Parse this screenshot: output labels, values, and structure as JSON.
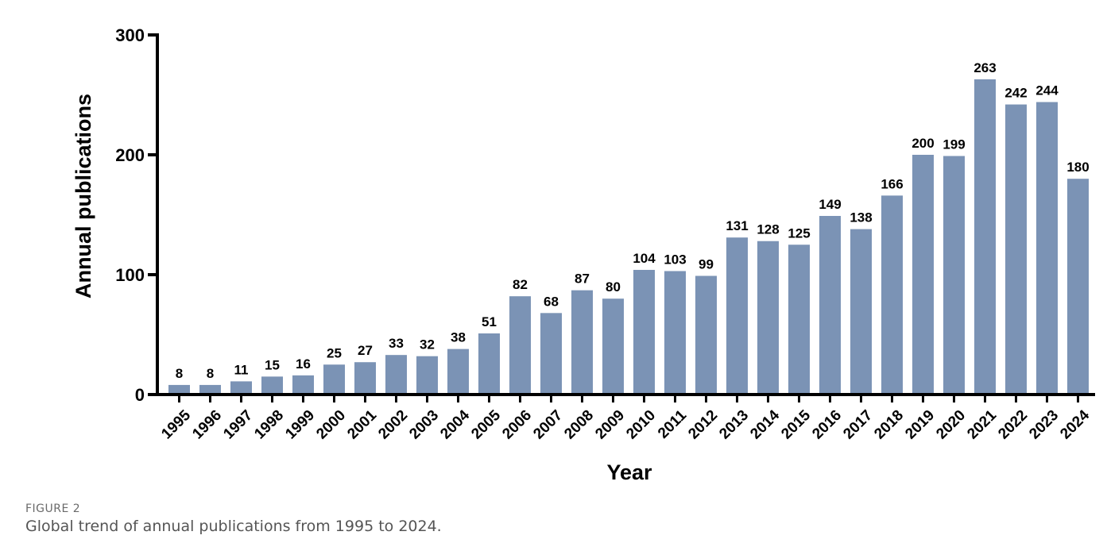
{
  "chart_data": {
    "type": "bar",
    "title": "",
    "xlabel": "Year",
    "ylabel": "Annual publications",
    "ylim": [
      0,
      300
    ],
    "yticks": [
      0,
      100,
      200,
      300
    ],
    "categories": [
      "1995",
      "1996",
      "1997",
      "1998",
      "1999",
      "2000",
      "2001",
      "2002",
      "2003",
      "2004",
      "2005",
      "2006",
      "2007",
      "2008",
      "2009",
      "2010",
      "2011",
      "2012",
      "2013",
      "2014",
      "2015",
      "2016",
      "2017",
      "2018",
      "2019",
      "2020",
      "2021",
      "2022",
      "2023",
      "2024"
    ],
    "values": [
      8,
      8,
      11,
      15,
      16,
      25,
      27,
      33,
      32,
      38,
      51,
      82,
      68,
      87,
      80,
      104,
      103,
      99,
      131,
      128,
      125,
      149,
      138,
      166,
      200,
      199,
      263,
      242,
      244,
      180
    ],
    "bar_color": "#7b93b5",
    "axis_color": "#000000",
    "grid": false,
    "legend": "none",
    "data_labels": true
  },
  "figure": {
    "label": "FIGURE 2",
    "caption": "Global trend of annual publications from 1995 to 2024."
  }
}
